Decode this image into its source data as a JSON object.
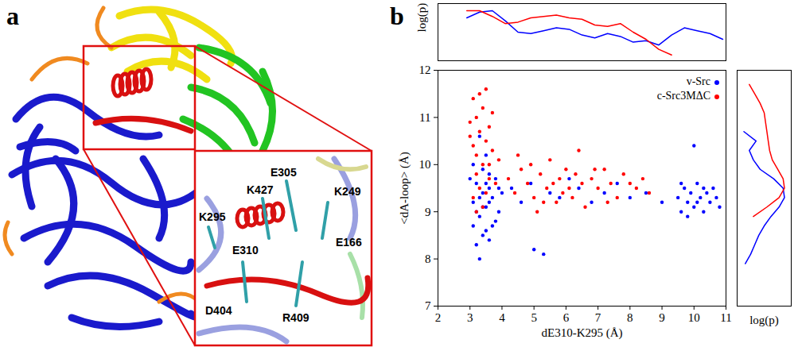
{
  "panel_labels": [
    "a",
    "b"
  ],
  "structure_labels": [
    "E305",
    "K427",
    "K249",
    "K295",
    "E310",
    "E166",
    "D404",
    "R409"
  ],
  "chart_data": [
    {
      "type": "scatter",
      "xlabel": "dE310-K295 (Å)",
      "ylabel": "<dA-loop> (Å)",
      "xlim": [
        2,
        11
      ],
      "xticks": [
        2,
        3,
        4,
        5,
        6,
        7,
        8,
        9,
        10,
        11
      ],
      "ylim": [
        7,
        12
      ],
      "yticks": [
        7,
        8,
        9,
        10,
        11,
        12
      ],
      "grid": false,
      "legend": "top-right",
      "marker": "circle",
      "series": [
        {
          "name": "v-Src",
          "color": "#0000ff",
          "x": [
            3.1,
            3.2,
            3.3,
            3.4,
            3.5,
            3.6,
            3.2,
            3.3,
            3.5,
            3.7,
            3.8,
            3.4,
            3.1,
            3.6,
            3.9,
            3.0,
            3.5,
            3.3,
            3.7,
            3.2,
            3.6,
            3.4,
            3.8,
            3.5,
            3.3,
            3.1,
            4.0,
            3.9,
            3.6,
            3.4,
            4.3,
            4.6,
            4.9,
            5.3,
            5.0,
            5.5,
            5.8,
            6.1,
            6.4,
            6.8,
            7.2,
            7.6,
            8.0,
            8.5,
            9.0,
            9.5,
            9.6,
            9.7,
            9.8,
            9.9,
            10.0,
            10.1,
            10.2,
            10.3,
            10.4,
            10.5,
            10.6,
            10.7,
            10.8,
            10.0,
            9.6,
            10.3,
            9.8,
            10.1
          ],
          "values": [
            9.2,
            9.6,
            8.9,
            9.4,
            8.6,
            9.8,
            8.3,
            8.0,
            9.1,
            9.3,
            8.8,
            9.9,
            10.0,
            8.4,
            9.5,
            9.7,
            9.6,
            9.3,
            8.7,
            9.0,
            9.2,
            8.5,
            9.7,
            10.2,
            10.6,
            8.7,
            9.4,
            9.0,
            9.5,
            9.1,
            9.5,
            9.2,
            9.6,
            8.1,
            8.2,
            9.4,
            9.3,
            9.7,
            9.5,
            9.2,
            9.4,
            9.6,
            9.3,
            9.4,
            9.2,
            9.3,
            9.0,
            9.5,
            9.2,
            9.4,
            9.1,
            9.6,
            9.3,
            9.0,
            9.4,
            9.2,
            9.5,
            9.3,
            9.1,
            10.4,
            9.6,
            9.5,
            8.9,
            9.2
          ]
        },
        {
          "name": "c-Src3MΔC",
          "color": "#ff0000",
          "x": [
            3.1,
            3.2,
            3.3,
            3.0,
            3.4,
            3.5,
            3.2,
            3.6,
            3.3,
            3.1,
            3.4,
            3.7,
            3.5,
            3.2,
            3.3,
            3.6,
            3.1,
            3.4,
            3.8,
            3.5,
            3.0,
            3.7,
            3.9,
            3.2,
            3.6,
            4.2,
            4.4,
            4.6,
            4.8,
            5.0,
            5.2,
            5.4,
            5.5,
            5.6,
            5.7,
            5.8,
            5.9,
            6.0,
            6.1,
            6.2,
            6.3,
            6.5,
            6.6,
            6.8,
            7.0,
            7.2,
            7.4,
            7.6,
            7.8,
            8.0,
            8.2,
            8.4,
            8.6,
            4.5,
            5.1,
            6.4,
            7.3,
            4.9,
            5.3,
            6.9
          ],
          "values": [
            11.4,
            11.0,
            10.7,
            10.9,
            11.2,
            10.5,
            10.2,
            10.8,
            11.5,
            10.4,
            10.0,
            10.3,
            11.6,
            9.8,
            9.5,
            9.7,
            9.3,
            9.1,
            9.6,
            9.4,
            10.6,
            11.1,
            10.1,
            9.0,
            10.0,
            9.7,
            9.4,
            9.9,
            9.6,
            9.3,
            9.8,
            9.5,
            10.1,
            9.6,
            9.2,
            9.7,
            9.4,
            9.9,
            9.5,
            9.3,
            9.8,
            9.6,
            9.1,
            9.7,
            9.5,
            9.9,
            9.6,
            9.3,
            9.8,
            9.6,
            9.5,
            9.7,
            9.4,
            10.2,
            9.0,
            10.3,
            9.2,
            10.0,
            9.2,
            9.9
          ]
        }
      ]
    },
    {
      "type": "line",
      "ylabel": "log(p)",
      "xlim": [
        2,
        11
      ],
      "ylim": [
        -4,
        0
      ],
      "tick_labels": false,
      "series": [
        {
          "name": "v-Src",
          "color": "#0000ff",
          "x": [
            2.9,
            3.3,
            3.7,
            4.1,
            4.5,
            4.9,
            5.3,
            5.7,
            6.1,
            6.5,
            6.9,
            7.3,
            7.7,
            8.1,
            8.5,
            8.9,
            9.3,
            9.7,
            10.1,
            10.5,
            10.9
          ],
          "values": [
            -1.0,
            -0.6,
            -0.5,
            -1.2,
            -2.0,
            -2.1,
            -1.9,
            -1.7,
            -1.8,
            -2.2,
            -2.4,
            -2.1,
            -2.3,
            -2.7,
            -2.6,
            -2.9,
            -2.2,
            -1.7,
            -1.9,
            -2.1,
            -2.5
          ]
        },
        {
          "name": "c-Src3MΔC",
          "color": "#ff0000",
          "x": [
            2.9,
            3.3,
            3.7,
            4.1,
            4.5,
            4.9,
            5.3,
            5.7,
            6.1,
            6.5,
            6.9,
            7.3,
            7.7,
            8.1,
            8.5,
            8.9,
            9.3
          ],
          "values": [
            -0.5,
            -0.5,
            -0.9,
            -1.4,
            -1.3,
            -1.0,
            -0.9,
            -0.8,
            -1.0,
            -1.1,
            -1.5,
            -1.6,
            -1.4,
            -2.0,
            -2.5,
            -3.2,
            -3.6
          ]
        }
      ]
    },
    {
      "type": "line",
      "orientation": "horizontal",
      "xlabel": "log(p)",
      "xlim": [
        -4,
        0
      ],
      "ylim": [
        7,
        12
      ],
      "tick_labels": false,
      "series": [
        {
          "name": "v-Src",
          "color": "#0000ff",
          "y": [
            7.9,
            8.1,
            8.3,
            8.5,
            8.7,
            8.9,
            9.1,
            9.3,
            9.5,
            9.7,
            9.9,
            10.1,
            10.3,
            10.5,
            10.7
          ],
          "values": [
            -3.4,
            -3.0,
            -2.7,
            -2.4,
            -2.0,
            -1.5,
            -0.9,
            -0.5,
            -0.6,
            -1.3,
            -2.3,
            -2.8,
            -3.1,
            -2.6,
            -3.5
          ]
        },
        {
          "name": "c-Src3MΔC",
          "color": "#ff0000",
          "y": [
            8.9,
            9.1,
            9.3,
            9.5,
            9.7,
            9.9,
            10.1,
            10.3,
            10.5,
            10.7,
            10.9,
            11.1,
            11.3,
            11.5,
            11.7
          ],
          "values": [
            -2.8,
            -1.8,
            -0.9,
            -0.5,
            -0.6,
            -1.0,
            -1.4,
            -1.6,
            -1.7,
            -1.8,
            -1.9,
            -2.0,
            -2.3,
            -2.7,
            -3.1
          ]
        }
      ]
    }
  ]
}
